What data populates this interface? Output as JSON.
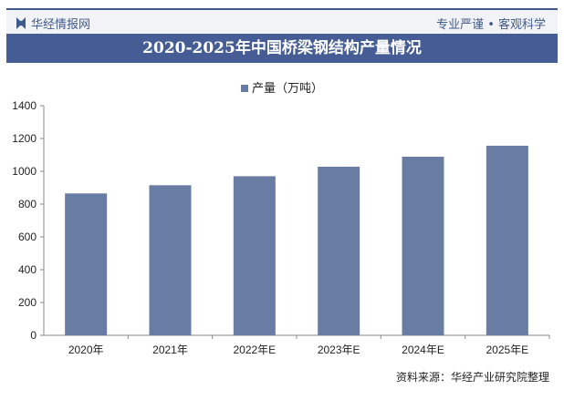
{
  "header": {
    "brand": "华经情报网",
    "slogan": "专业严谨 • 客观科学"
  },
  "chart_data": {
    "type": "bar",
    "title": "2020-2025年中国桥梁钢结构产量情况",
    "categories": [
      "2020年",
      "2021年",
      "2022年E",
      "2023年E",
      "2024年E",
      "2025年E"
    ],
    "series": [
      {
        "name": "产量（万吨）",
        "values": [
          865,
          915,
          970,
          1028,
          1089,
          1156
        ],
        "color": "#697ca3"
      }
    ],
    "ylim": [
      0,
      1400
    ],
    "yticks": [
      0,
      200,
      400,
      600,
      800,
      1000,
      1200,
      1400
    ],
    "grid": false,
    "legend": "top-center"
  },
  "footer": {
    "source": "资料来源：华经产业研究院整理"
  }
}
